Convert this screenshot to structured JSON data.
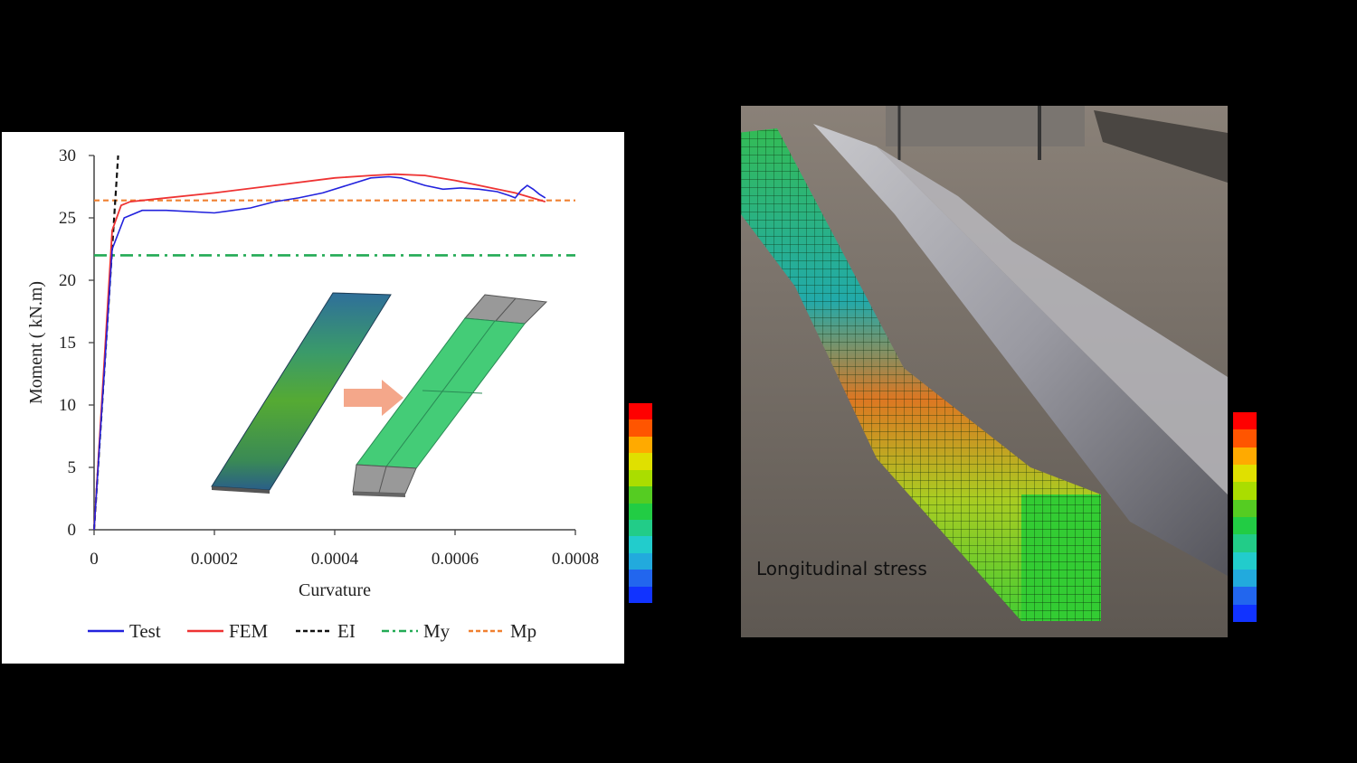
{
  "chart_data": {
    "type": "line",
    "xlabel": "Curvature",
    "ylabel": "Moment ( kN.m)",
    "xlim": [
      0,
      0.0008
    ],
    "ylim": [
      0,
      30
    ],
    "x_ticks": [
      "0",
      "0.0002",
      "0.0004",
      "0.0006",
      "0.0008"
    ],
    "y_ticks": [
      "0",
      "5",
      "10",
      "15",
      "20",
      "25",
      "30"
    ],
    "legend_position": "bottom",
    "series": [
      {
        "name": "Test",
        "color": "#2222dd",
        "style": "solid",
        "x": [
          0,
          3e-05,
          5e-05,
          8e-05,
          0.00012,
          0.0002,
          0.00026,
          0.0003,
          0.00034,
          0.00038,
          0.00042,
          0.00046,
          0.00049,
          0.00051,
          0.00053,
          0.00055,
          0.00058,
          0.00061,
          0.00064,
          0.00067,
          0.00069,
          0.0007,
          0.00071,
          0.00072,
          0.00073,
          0.00074,
          0.00075
        ],
        "y": [
          0,
          22.5,
          25.0,
          25.6,
          25.6,
          25.4,
          25.8,
          26.3,
          26.6,
          27.0,
          27.6,
          28.2,
          28.3,
          28.2,
          27.9,
          27.6,
          27.3,
          27.4,
          27.3,
          27.1,
          26.8,
          26.6,
          27.2,
          27.6,
          27.3,
          26.9,
          26.6
        ]
      },
      {
        "name": "FEM",
        "color": "#ee3333",
        "style": "solid",
        "x": [
          0,
          3e-05,
          4.5e-05,
          6e-05,
          0.0001,
          0.0002,
          0.0003,
          0.0004,
          0.00046,
          0.0005,
          0.00055,
          0.0006,
          0.00065,
          0.0007,
          0.00075
        ],
        "y": [
          0,
          24.0,
          26.0,
          26.3,
          26.5,
          27.0,
          27.6,
          28.2,
          28.4,
          28.5,
          28.4,
          28.0,
          27.5,
          27.0,
          26.3
        ]
      },
      {
        "name": "EI",
        "color": "#111111",
        "style": "dash",
        "x": [
          0,
          4e-05
        ],
        "y": [
          0,
          30
        ]
      },
      {
        "name": "My",
        "color": "#22aa55",
        "style": "dashdot",
        "x": [
          0,
          0.0008
        ],
        "y": [
          22,
          22
        ]
      },
      {
        "name": "Mp",
        "color": "#f08030",
        "style": "dash",
        "x": [
          0,
          0.0008
        ],
        "y": [
          26.4,
          26.4
        ]
      }
    ]
  },
  "annotation": {
    "label": "Longitudinal stress"
  },
  "colorbar": {
    "colors": [
      "#ff0000",
      "#ff5500",
      "#ffaa00",
      "#e0e000",
      "#aadd00",
      "#55cc22",
      "#22cc44",
      "#22cc88",
      "#22cccc",
      "#22aadd",
      "#2266ee",
      "#1133ff"
    ]
  }
}
